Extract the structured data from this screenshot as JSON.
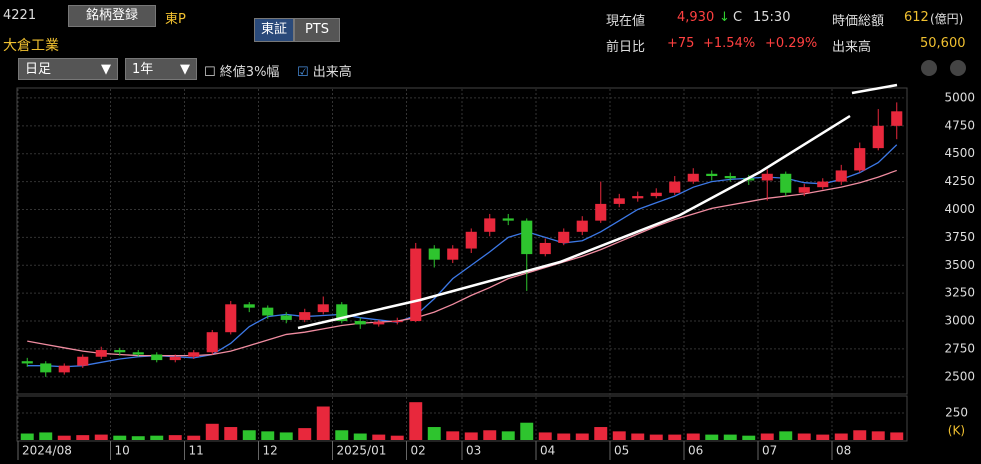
{
  "header": {
    "code": "4221",
    "register_button": "銘柄登録",
    "market": "東P",
    "name": "大倉工業",
    "tabs": [
      "東証",
      "PTS"
    ],
    "price_label": "現在値",
    "price": "4,930",
    "arrow": "↓",
    "flag": "C",
    "time": "15:30",
    "cap_label": "時価総額",
    "cap": "612",
    "cap_unit": "(億円)",
    "change_label": "前日比",
    "change": "+75",
    "change_pct": "+1.54%",
    "change_pct2": "+0.29%",
    "volume_label": "出来高",
    "volume": "50,600",
    "period": "日足",
    "range": "1年",
    "option1": "終値3%幅",
    "option2": "出来高"
  },
  "chart_data": [
    {
      "type": "candlestick",
      "up_color": "#e8283c",
      "down_color": "#2ec42e",
      "categories": [
        "2024/08",
        null,
        null,
        null,
        null,
        "10",
        null,
        null,
        null,
        "11",
        null,
        null,
        null,
        "12",
        null,
        null,
        null,
        "2025/01",
        null,
        null,
        null,
        "02",
        null,
        null,
        "03",
        null,
        null,
        null,
        "04",
        null,
        null,
        null,
        "05",
        null,
        null,
        null,
        "06",
        null,
        null,
        null,
        "07",
        null,
        null,
        null,
        "08",
        null,
        null,
        null
      ],
      "open": [
        2640,
        2620,
        2540,
        2600,
        2680,
        2740,
        2720,
        2700,
        2650,
        2680,
        2720,
        2900,
        3150,
        3120,
        3050,
        3010,
        3080,
        3150,
        3000,
        2970,
        2990,
        3000,
        3650,
        3550,
        3650,
        3800,
        3920,
        3900,
        3600,
        3700,
        3800,
        3900,
        4050,
        4100,
        4120,
        4150,
        4250,
        4320,
        4300,
        4280,
        4260,
        4320,
        4150,
        4200,
        4250,
        4350,
        4550,
        4750
      ],
      "close": [
        2620,
        2540,
        2600,
        2680,
        2740,
        2720,
        2700,
        2650,
        2680,
        2720,
        2900,
        3150,
        3120,
        3050,
        3010,
        3080,
        3150,
        3000,
        2970,
        2990,
        3000,
        3650,
        3550,
        3650,
        3800,
        3920,
        3900,
        3600,
        3700,
        3800,
        3900,
        4050,
        4100,
        4120,
        4150,
        4250,
        4320,
        4300,
        4280,
        4260,
        4320,
        4150,
        4200,
        4250,
        4350,
        4550,
        4750,
        4880
      ],
      "high": [
        2670,
        2640,
        2620,
        2700,
        2770,
        2760,
        2740,
        2720,
        2700,
        2740,
        2920,
        3180,
        3170,
        3140,
        3080,
        3110,
        3220,
        3170,
        3030,
        3010,
        3030,
        3700,
        3680,
        3680,
        3830,
        3960,
        3960,
        3920,
        3740,
        3830,
        3940,
        4250,
        4140,
        4160,
        4190,
        4300,
        4370,
        4350,
        4330,
        4310,
        4360,
        4340,
        4230,
        4280,
        4400,
        4600,
        4900,
        4960
      ],
      "low": [
        2590,
        2500,
        2520,
        2580,
        2660,
        2690,
        2680,
        2630,
        2630,
        2660,
        2700,
        2880,
        3080,
        3020,
        2980,
        2990,
        3060,
        2980,
        2930,
        2950,
        2970,
        2990,
        3480,
        3520,
        3610,
        3760,
        3860,
        3270,
        3580,
        3680,
        3770,
        3880,
        4020,
        4070,
        4100,
        4130,
        4230,
        4260,
        4250,
        4220,
        4080,
        4120,
        4120,
        4180,
        4220,
        4330,
        4530,
        4630
      ],
      "ma": [
        {
          "color": "#3c78e6",
          "values": [
            2600,
            2600,
            2590,
            2600,
            2630,
            2660,
            2680,
            2690,
            2680,
            2670,
            2700,
            2800,
            2950,
            3040,
            3060,
            3040,
            3050,
            3060,
            3030,
            3010,
            2990,
            3050,
            3200,
            3380,
            3500,
            3620,
            3750,
            3800,
            3750,
            3700,
            3720,
            3800,
            3900,
            4000,
            4060,
            4120,
            4200,
            4250,
            4270,
            4280,
            4290,
            4280,
            4240,
            4230,
            4270,
            4330,
            4420,
            4580
          ]
        },
        {
          "color": "#f08ca0",
          "values": [
            2820,
            2790,
            2760,
            2730,
            2710,
            2700,
            2690,
            2690,
            2690,
            2690,
            2700,
            2730,
            2780,
            2830,
            2880,
            2900,
            2930,
            2960,
            2980,
            2990,
            3000,
            3030,
            3080,
            3150,
            3230,
            3300,
            3380,
            3430,
            3480,
            3530,
            3580,
            3640,
            3710,
            3780,
            3850,
            3910,
            3960,
            4010,
            4040,
            4070,
            4100,
            4120,
            4140,
            4170,
            4200,
            4240,
            4290,
            4350
          ]
        }
      ],
      "ylim": [
        2355,
        5080
      ],
      "yticks": [
        2500,
        2750,
        3000,
        3250,
        3500,
        3750,
        4000,
        4250,
        4500,
        4750,
        5000
      ],
      "grid": true
    },
    {
      "type": "volume",
      "unit": "(K)",
      "values": [
        60,
        70,
        40,
        45,
        50,
        40,
        35,
        40,
        45,
        40,
        150,
        120,
        90,
        80,
        70,
        110,
        310,
        90,
        60,
        50,
        40,
        350,
        120,
        80,
        70,
        90,
        80,
        160,
        70,
        60,
        60,
        120,
        80,
        60,
        50,
        50,
        60,
        50,
        50,
        40,
        60,
        80,
        60,
        50,
        60,
        90,
        80,
        70
      ],
      "ylim": [
        0,
        398
      ],
      "yticks": [
        250
      ]
    }
  ]
}
